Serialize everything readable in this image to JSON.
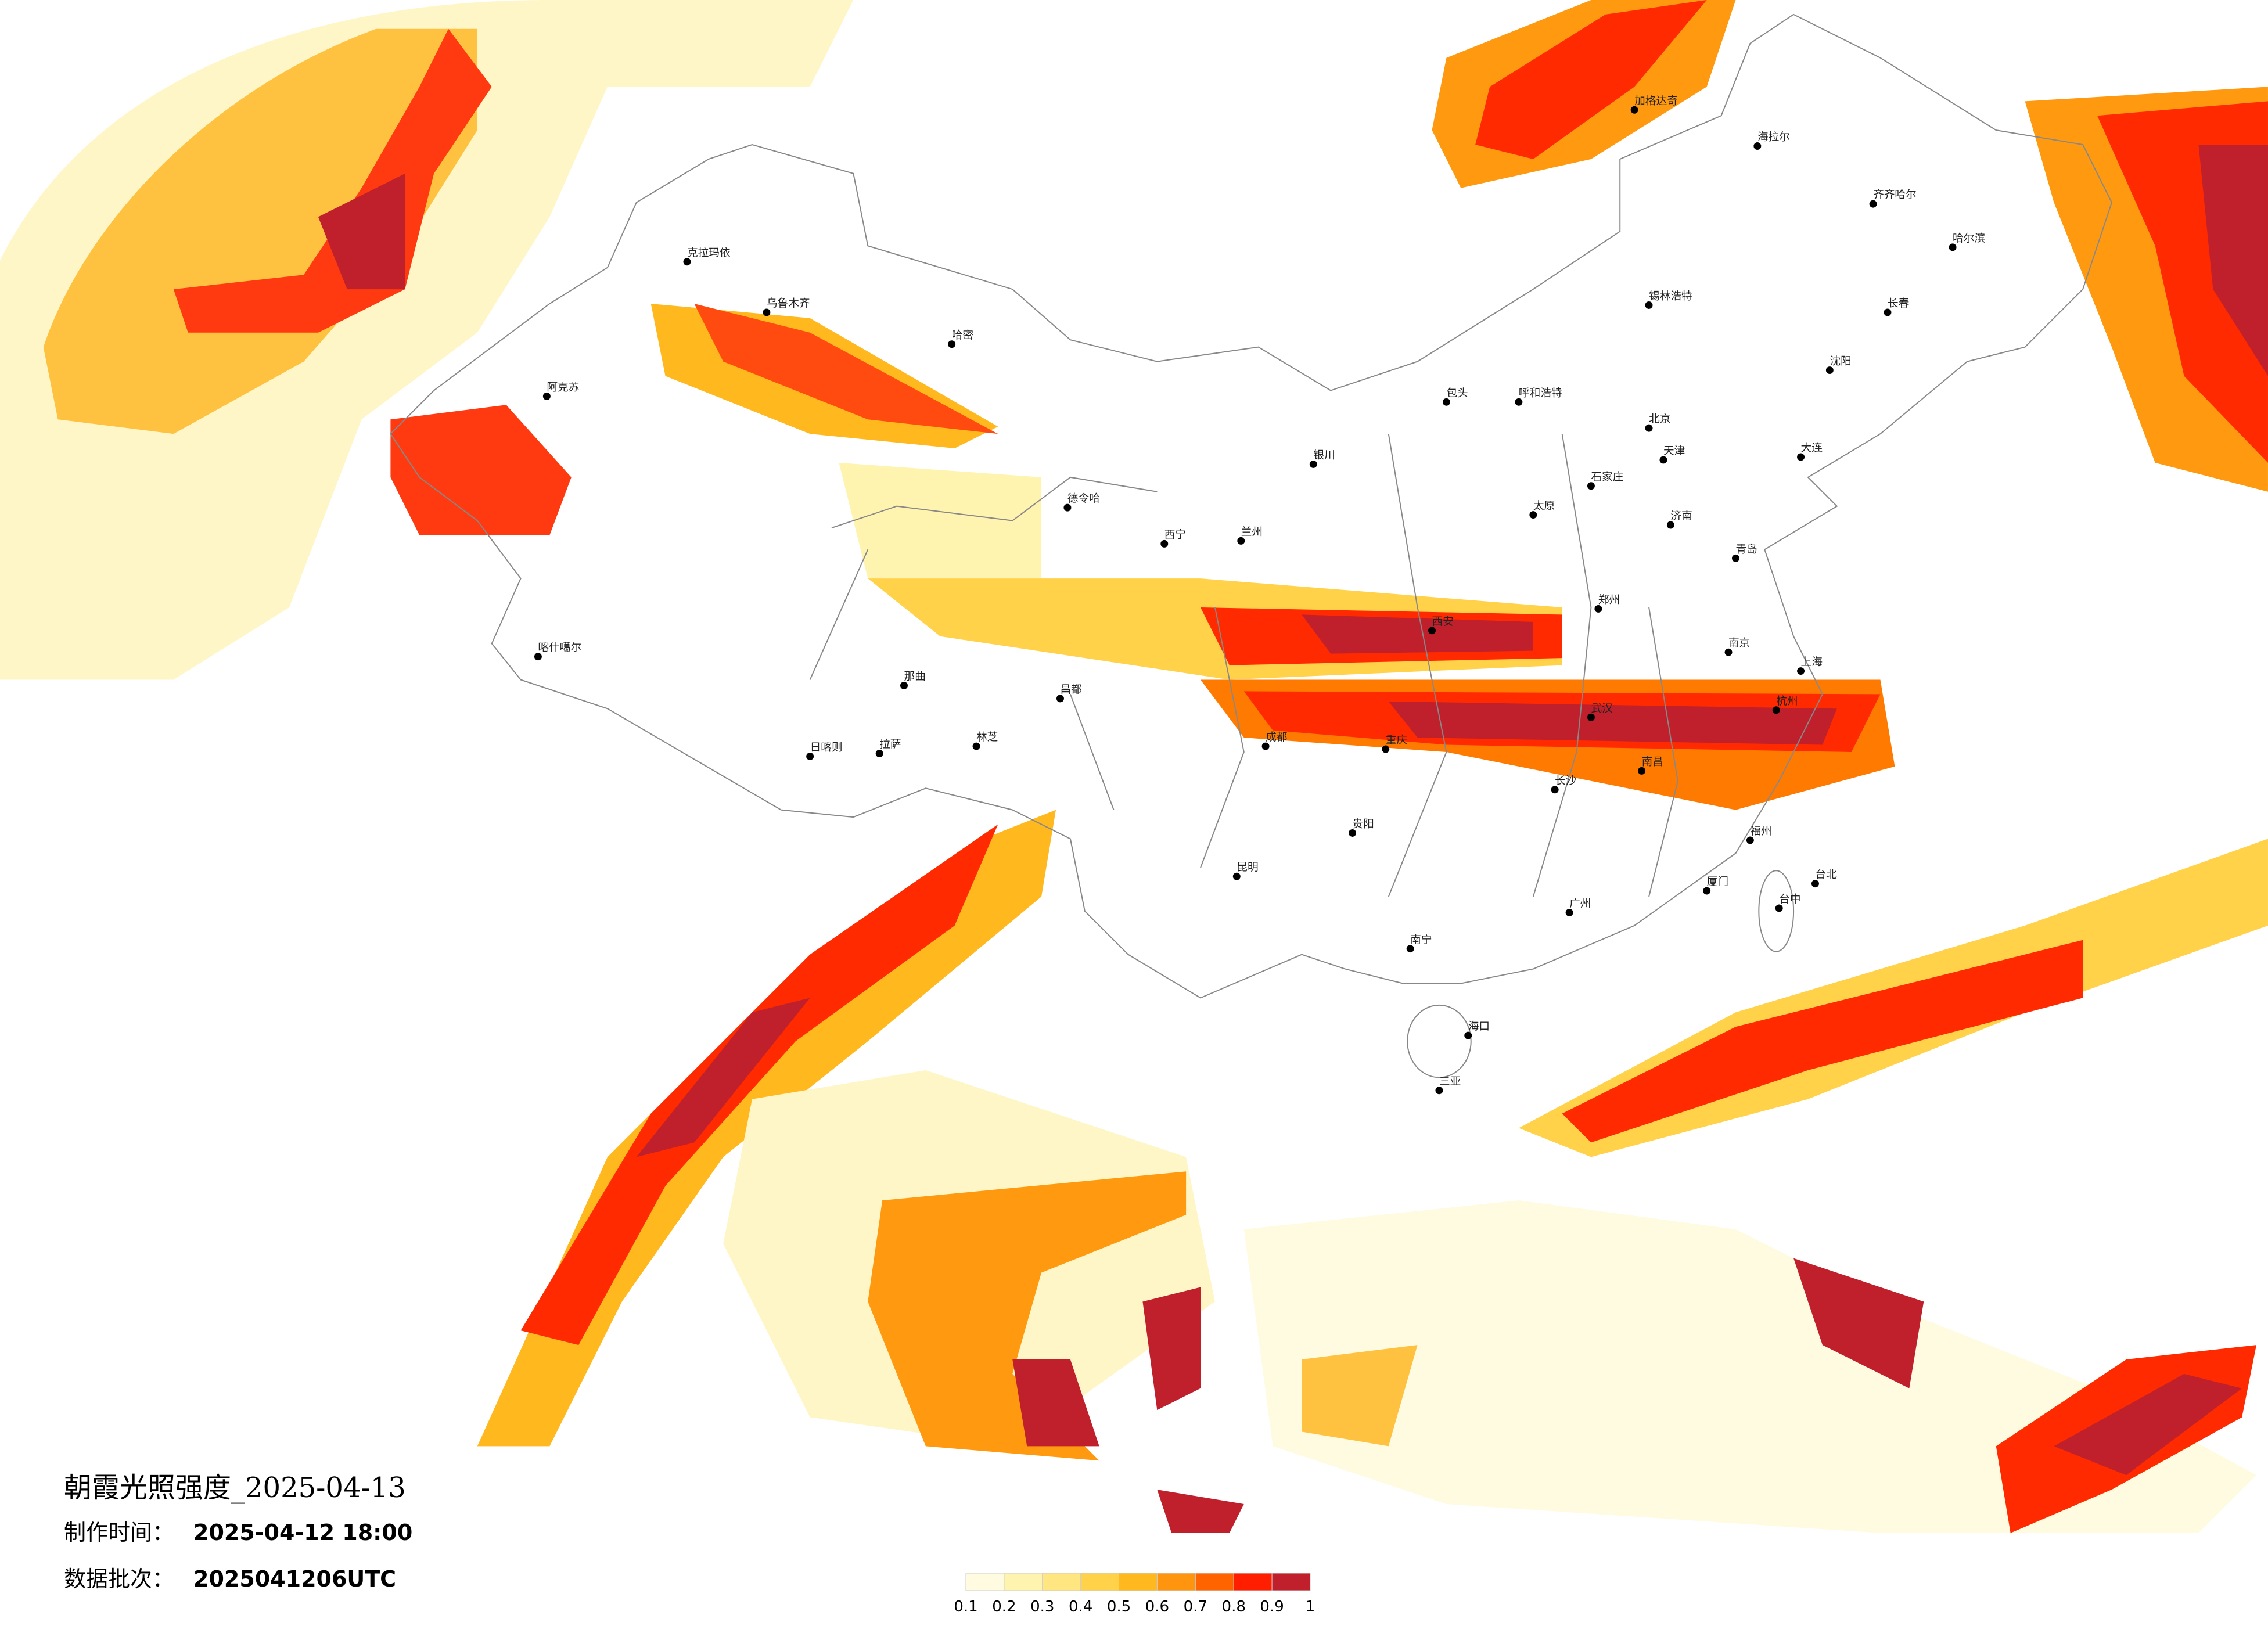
{
  "header": {
    "title": "朝霞光照强度_2025-04-13",
    "made_label": "制作时间：",
    "made_time": "2025-04-12 18:00",
    "batch_label": "数据批次：",
    "batch": "2025041206UTC"
  },
  "legend": {
    "ticks": [
      0.1,
      0.2,
      0.3,
      0.4,
      0.5,
      0.6,
      0.7,
      0.8,
      0.9,
      1
    ],
    "colors": [
      "#fffbe0",
      "#fff3b0",
      "#ffe680",
      "#ffd24a",
      "#ffb81e",
      "#ff950e",
      "#ff6400",
      "#ff1e00",
      "#c0202c"
    ]
  },
  "cities": [
    "克拉玛依",
    "乌鲁木齐",
    "哈密",
    "阿克苏",
    "喀什噶尔",
    "拉萨",
    "日喀则",
    "林芝",
    "昌都",
    "那曲",
    "德令哈",
    "西宁",
    "兰州",
    "银川",
    "呼和浩特",
    "包头",
    "北京",
    "天津",
    "石家庄",
    "太原",
    "济南",
    "青岛",
    "郑州",
    "西安",
    "成都",
    "重庆",
    "武汉",
    "长沙",
    "南昌",
    "南京",
    "上海",
    "杭州",
    "福州",
    "厦门",
    "广州",
    "南宁",
    "昆明",
    "贵阳",
    "海口",
    "三亚",
    "台北",
    "台中",
    "沈阳",
    "长春",
    "哈尔滨",
    "齐齐哈尔",
    "海拉尔",
    "加格达奇",
    "锡林浩特",
    "大连"
  ]
}
